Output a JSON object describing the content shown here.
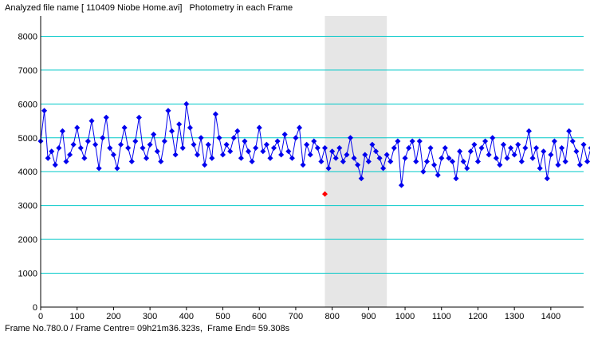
{
  "header": {
    "title": "Analyzed file name [ 110409 Niobe Home.avi]   Photometry in each Frame"
  },
  "status": {
    "text": "Frame No.780.0 / Frame Centre= 09h21m36.323s,  Frame End= 59.308s"
  },
  "colors": {
    "series": "#0000ee",
    "marker_current": "#ff0000",
    "gridline": "#00c8c8",
    "selection": "#e6e6e6"
  },
  "chart_data": {
    "type": "scatter",
    "title": "",
    "xlabel": "",
    "ylabel": "",
    "xlim": [
      0,
      1490
    ],
    "ylim": [
      0,
      8600
    ],
    "x_ticks": [
      0,
      100,
      200,
      300,
      400,
      500,
      600,
      700,
      800,
      900,
      1000,
      1100,
      1200,
      1300,
      1400
    ],
    "y_ticks": [
      0,
      1000,
      2000,
      3000,
      4000,
      5000,
      6000,
      7000,
      8000
    ],
    "grid": "horizontal",
    "connected_points": true,
    "x_step": 10,
    "series": [
      {
        "values": [
          4900,
          5800,
          4400,
          4600,
          4200,
          4700,
          5200,
          4300,
          4500,
          4800,
          5300,
          4700,
          4400,
          4900,
          5500,
          4800,
          4100,
          5000,
          5600,
          4700,
          4500,
          4100,
          4800,
          5300,
          4700,
          4300,
          4900,
          5600,
          4700,
          4400,
          4800,
          5100,
          4600,
          4300,
          4900,
          5800,
          5200,
          4500,
          5400,
          4700,
          6000,
          5300,
          4800,
          4500,
          5000,
          4200,
          4800,
          4400,
          5700,
          5000,
          4500,
          4800,
          4600,
          5000,
          5200,
          4400,
          4900,
          4600,
          4300,
          4700,
          5300,
          4600,
          4800,
          4400,
          4700,
          4900,
          4500,
          5100,
          4600,
          4400,
          5000,
          5300,
          4200,
          4800,
          4500,
          4900,
          4700,
          4300,
          4700,
          4100,
          4600,
          4400,
          4700,
          4300,
          4500,
          5000,
          4400,
          4200,
          3800,
          4500,
          4300,
          4800,
          4600,
          4400,
          4100,
          4500,
          4300,
          4700,
          4900,
          3600,
          4400,
          4700,
          4900,
          4300,
          4900,
          4000,
          4300,
          4700,
          4200,
          3900,
          4400,
          4700,
          4400,
          4300,
          3800,
          4600,
          4300,
          4100,
          4600,
          4800,
          4300,
          4700,
          4900,
          4500,
          5000,
          4400,
          4200,
          4800,
          4400,
          4700,
          4500,
          4800,
          4300,
          4700,
          5200,
          4400,
          4700,
          4100,
          4600,
          3800,
          4500,
          4900,
          4200,
          4700,
          4300,
          5200,
          4900,
          4600,
          4200,
          4800,
          4300,
          4700,
          4100,
          4900,
          4400,
          4600,
          4300,
          4100,
          4800,
          4400,
          4100,
          4300,
          4000,
          4500,
          4100,
          4500,
          3900,
          4400,
          4200,
          4600,
          4400,
          4300,
          4200,
          4100,
          4400,
          4300,
          4200,
          4000,
          4300,
          4100,
          4400,
          4000,
          4500,
          4300,
          4200,
          4400,
          4300,
          4000,
          4300,
          4300,
          3900,
          4200,
          4100,
          4400,
          4000,
          4200,
          4100,
          3900,
          4300,
          4300,
          4100,
          4000,
          4300,
          4500,
          4100,
          4200,
          3900,
          4300,
          4100,
          4000,
          4200,
          4100,
          3900,
          4000,
          4300,
          3800,
          4200,
          4400,
          3900,
          4100,
          3900,
          4300,
          4000,
          4400,
          3800,
          4100,
          4300,
          3900,
          4200,
          4100,
          3900,
          4000,
          4200,
          4000,
          4300,
          4000,
          3900,
          4000,
          4300,
          3800,
          3900,
          4400,
          4000,
          4200,
          3800,
          4300,
          4000,
          4200,
          4000,
          4400
        ]
      }
    ],
    "current_point": {
      "x": 780,
      "y": 3340
    },
    "selection_range": [
      780,
      950
    ]
  }
}
